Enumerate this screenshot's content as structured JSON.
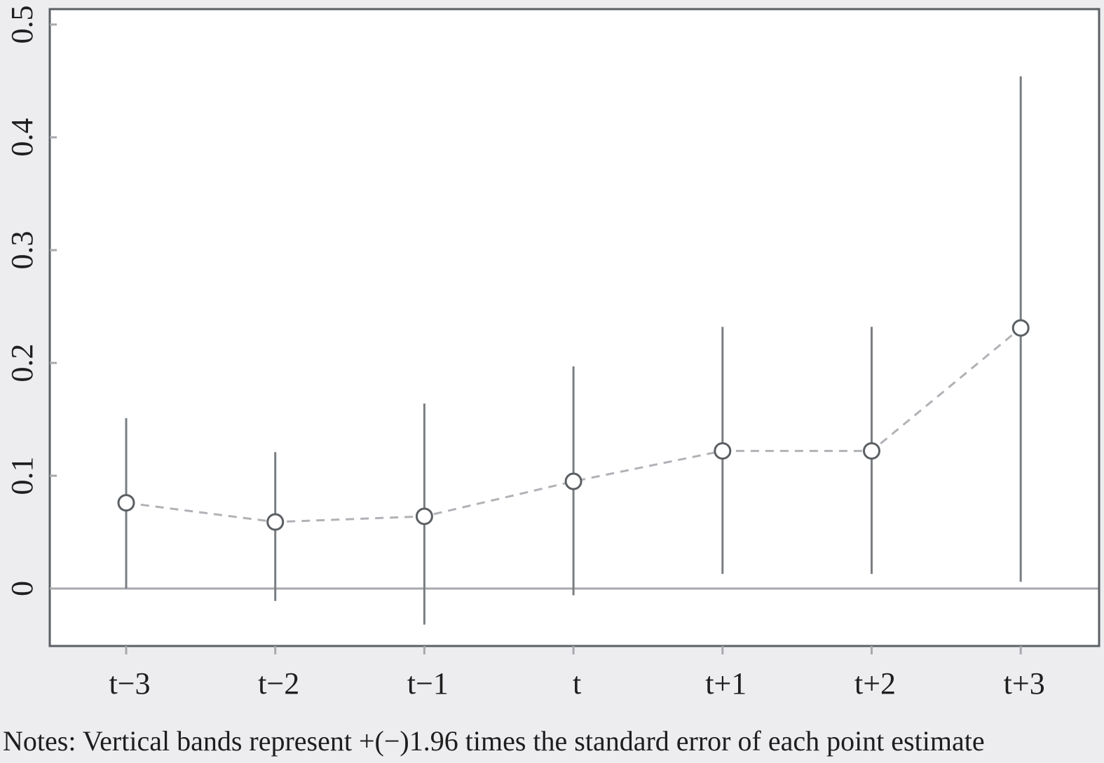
{
  "chart_data": {
    "type": "scatter",
    "title": "",
    "xlabel": "",
    "ylabel": "",
    "categories": [
      "t−3",
      "t−2",
      "t−1",
      "t",
      "t+1",
      "t+2",
      "t+3"
    ],
    "series": [
      {
        "values": [
          0.076,
          0.059,
          0.064,
          0.095,
          0.122,
          0.122,
          0.231
        ],
        "lower": [
          0.0,
          -0.011,
          -0.032,
          -0.006,
          0.013,
          0.013,
          0.006
        ],
        "upper": [
          0.151,
          0.121,
          0.164,
          0.197,
          0.232,
          0.232,
          0.454
        ]
      }
    ],
    "ylim": [
      -0.05,
      0.5
    ],
    "yticks": [
      {
        "value": 0,
        "label": "0"
      },
      {
        "value": 0.1,
        "label": "0.1"
      },
      {
        "value": 0.2,
        "label": "0.2"
      },
      {
        "value": 0.3,
        "label": "0.3"
      },
      {
        "value": 0.4,
        "label": "0.4"
      },
      {
        "value": 0.5,
        "label": "0.5"
      }
    ],
    "zero_line": true,
    "grid": false,
    "legend": "none",
    "colors": {
      "page_background": "#ededf0",
      "plot_background": "#ffffff",
      "frame": "#5b5f63",
      "error_bar": "#7a7e82",
      "marker_stroke": "#5b5f63",
      "connector": "#b0b2b6",
      "zero_line": "#a7a9ad",
      "tick": "#a7a9ad",
      "text": "#1e1e1e"
    }
  },
  "notes": "Notes: Vertical bands represent +(−)1.96 times the standard error of each point estimate"
}
